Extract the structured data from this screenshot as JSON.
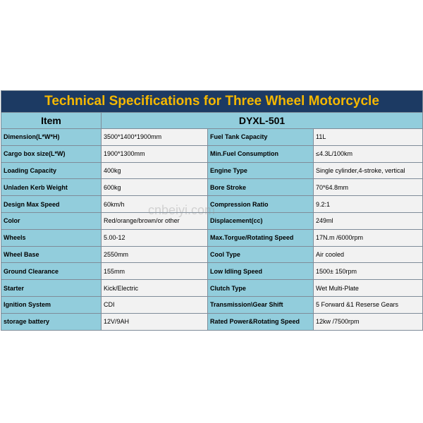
{
  "table": {
    "title": "Technical Specifications for Three Wheel Motorcycle",
    "header": [
      "Item",
      "DYXL-501"
    ],
    "rows": [
      [
        "Dimension(L*W*H)",
        "3500*1400*1900mm",
        "Fuel Tank Capacity",
        "11L"
      ],
      [
        "Cargo box size(L*W)",
        "1900*1300mm",
        "Min.Fuel Consumption",
        "≤4.3L/100km"
      ],
      [
        "Loading Capacity",
        "400kg",
        "Engine Type",
        "Single cylinder,4-stroke, vertical"
      ],
      [
        "Unladen Kerb Weight",
        "600kg",
        "Bore Stroke",
        "70*64.8mm"
      ],
      [
        "Design Max Speed",
        "60km/h",
        "Compression Ratio",
        "9.2:1"
      ],
      [
        "Color",
        "Red/orange/brown/or other",
        "Displacement(cc)",
        "249ml"
      ],
      [
        "Wheels",
        "5.00-12",
        "Max.Torgue/Rotating Speed",
        "17N.m /6000rpm"
      ],
      [
        "Wheel Base",
        "2550mm",
        "Cool Type",
        "Air cooled"
      ],
      [
        "Ground Clearance",
        "155mm",
        "Low Idling Speed",
        "1500± 150rpm"
      ],
      [
        "Starter",
        "Kick/Electric",
        "Clutch Type",
        "Wet Multi-Plate"
      ],
      [
        "Ignition System",
        "CDI",
        "Transmission\\Gear Shift",
        "5 Forward &1 Reserse Gears"
      ],
      [
        "storage battery",
        "12V/9AH",
        "Rated Power&Rotating Speed",
        "12kw /7500rpm"
      ]
    ]
  },
  "watermark": "cnbeiyi.com"
}
